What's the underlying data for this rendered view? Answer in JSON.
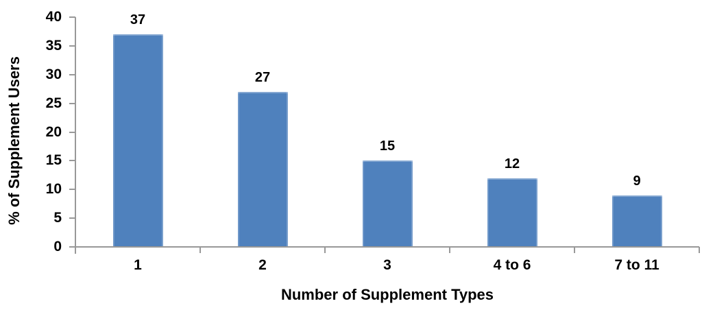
{
  "chart_data": {
    "type": "bar",
    "title": "",
    "xlabel": "Number of Supplement Types",
    "ylabel": "% of Supplement Users",
    "categories": [
      "1",
      "2",
      "3",
      "4 to 6",
      "7 to 11"
    ],
    "values": [
      37,
      27,
      15,
      12,
      9
    ],
    "data_labels": [
      "37",
      "27",
      "15",
      "12",
      "9"
    ],
    "yticks": [
      0,
      5,
      10,
      15,
      20,
      25,
      30,
      35,
      40
    ],
    "ylim": [
      0,
      40
    ],
    "grid": false,
    "legend": "none",
    "colors": {
      "bar": "#4F81BD",
      "axis": "#989898",
      "text": "#000000",
      "background": "#FFFFFF"
    }
  }
}
